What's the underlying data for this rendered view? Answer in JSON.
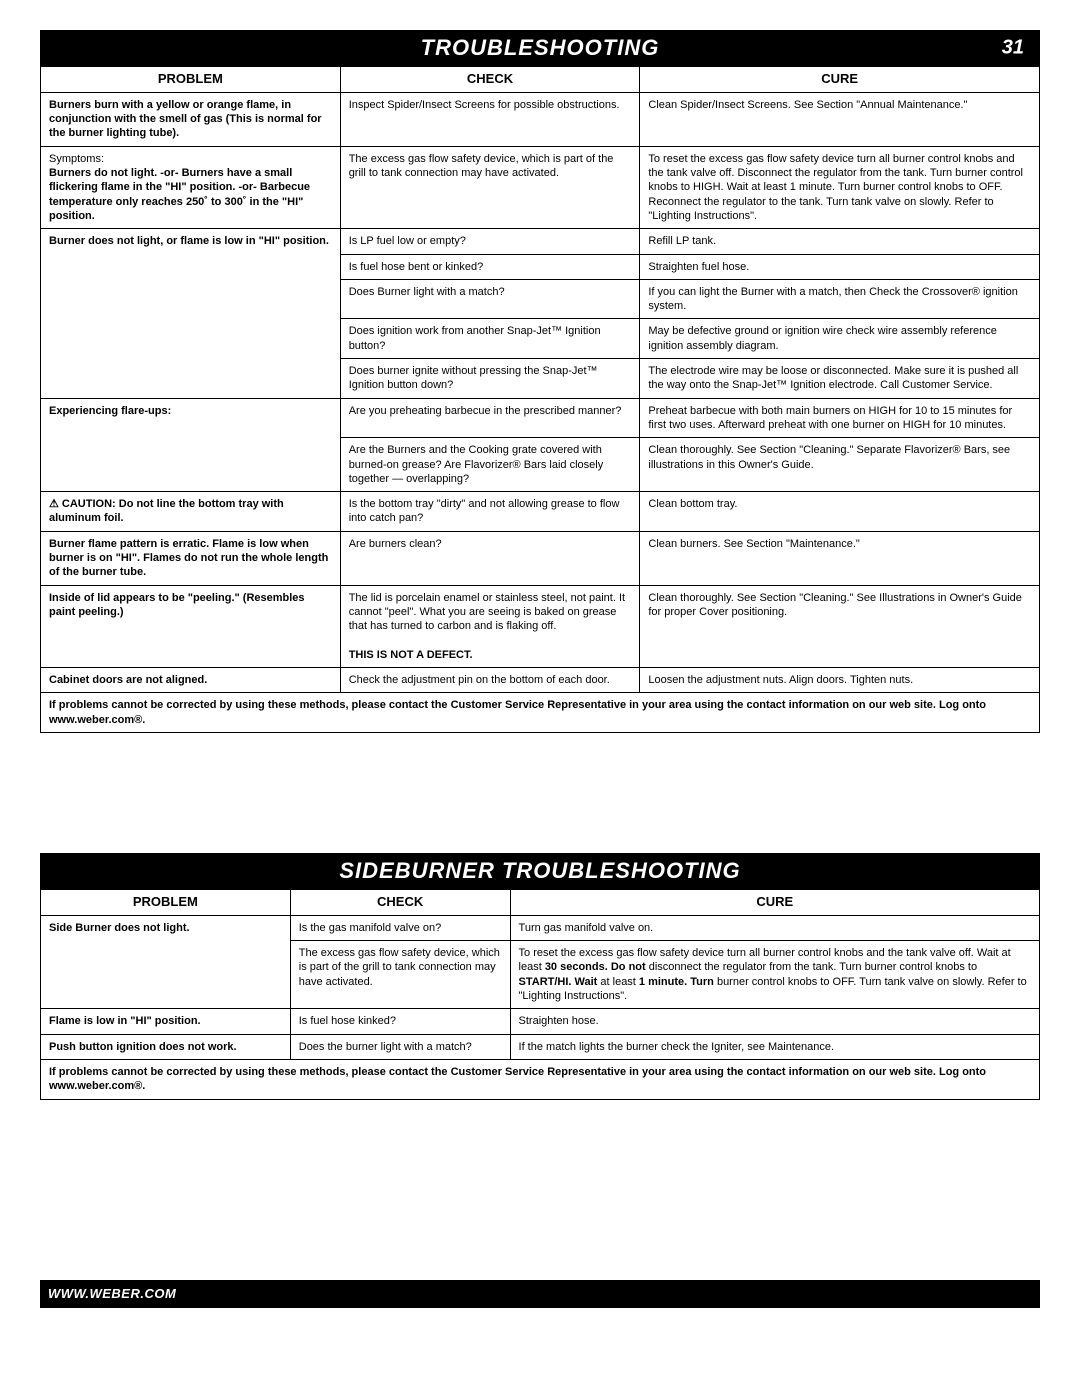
{
  "page_number": "31",
  "footer_url": "WWW.WEBER.COM",
  "colors": {
    "title_bg": "#000000",
    "title_fg": "#ffffff",
    "border": "#000000",
    "body_bg": "#ffffff",
    "text": "#000000"
  },
  "section1": {
    "title": "TROUBLESHOOTING",
    "col_widths_pct": [
      30,
      30,
      40
    ],
    "headers": [
      "PROBLEM",
      "CHECK",
      "CURE"
    ],
    "rows": [
      {
        "problem_html": "<span class='bold'>Burners burn with a yellow or orange flame, in conjunction with the smell of gas (This is normal for the burner lighting tube).</span>",
        "check": "Inspect Spider/Insect Screens for possible obstructions.",
        "cure": "Clean Spider/Insect Screens. See Section \"Annual Maintenance.\""
      },
      {
        "problem_html": "<span class='symptoms-label'>Symptoms:</span><br><span class='bold'>Burners do not light. -or- Burners have a small flickering flame in the \"HI\" position. -or- Barbecue temperature only reaches 250˚ to 300˚ in the \"HI\" position.</span>",
        "check": "The excess gas flow safety device, which is part of the grill to tank connection may have activated.",
        "cure": "To reset the excess gas flow safety device turn all burner control knobs and the tank valve off. Disconnect the regulator from the tank. Turn burner control knobs to HIGH. Wait at least 1 minute. Turn burner control knobs to OFF. Reconnect the regulator to the tank. Turn tank valve on slowly. Refer to \"Lighting Instructions\"."
      },
      {
        "problem_html": "<span class='bold'>Burner does not light, or flame is low in \"HI\" position.</span>",
        "checks_cures": [
          {
            "check": "Is LP fuel low or empty?",
            "cure": "Refill LP tank."
          },
          {
            "check": "Is fuel hose bent or kinked?",
            "cure": "Straighten fuel hose."
          },
          {
            "check": "Does Burner light with a match?",
            "cure": "If you can light the Burner with a match, then Check the Crossover® ignition system."
          },
          {
            "check": "Does ignition work from another Snap-Jet™ Ignition button?",
            "cure": "May be defective ground or ignition wire check wire assembly reference ignition assembly diagram."
          },
          {
            "check": "Does burner ignite without pressing the Snap-Jet™ Ignition button down?",
            "cure": "The electrode wire may be loose or disconnected. Make sure it is pushed all the way onto the Snap-Jet™ Ignition electrode. Call Customer Service."
          }
        ]
      },
      {
        "problem_html": "<span class='bold'>Experiencing flare-ups:</span>",
        "checks_cures": [
          {
            "check": "Are you preheating barbecue in the prescribed manner?",
            "cure": "Preheat barbecue with both main burners on HIGH for 10 to 15 minutes for first two uses. Afterward preheat with one burner on HIGH for 10 minutes."
          },
          {
            "check": "Are the Burners and the Cooking grate covered with burned-on grease? Are Flavorizer® Bars laid closely together — overlapping?",
            "cure": "Clean thoroughly. See Section \"Cleaning.\" Separate Flavorizer® Bars, see illustrations in this Owner's Guide."
          }
        ]
      },
      {
        "problem_html": "<span class='bold'>⚠ CAUTION: Do not line the bottom tray with aluminum foil.</span>",
        "check": "Is the bottom tray \"dirty\" and not allowing grease to flow into catch pan?",
        "cure": "Clean bottom tray."
      },
      {
        "problem_html": "<span class='bold'>Burner flame pattern is erratic. Flame is low when burner is on \"HI\". Flames do not run the whole length of the burner tube.</span>",
        "check": "Are burners clean?",
        "cure": "Clean burners. See Section \"Maintenance.\""
      },
      {
        "problem_html": "<span class='bold'>Inside of lid appears to be \"peeling.\" (Resembles paint peeling.)</span>",
        "check_html": "The lid is porcelain enamel or stainless steel, not paint. It cannot \"peel\". What you are seeing is baked on grease that has turned to carbon and is flaking off.<br><br><span class='bold'>THIS IS NOT A DEFECT.</span>",
        "cure": "Clean thoroughly. See Section \"Cleaning.\" See Illustrations in Owner's Guide for proper Cover positioning."
      },
      {
        "problem_html": "<span class='bold'>Cabinet doors are not aligned.</span>",
        "check": "Check the adjustment pin on the bottom of each door.",
        "cure": "Loosen the adjustment nuts. Align doors. Tighten nuts."
      }
    ],
    "footer_note": "If problems cannot be corrected by using these methods, please contact the Customer Service Representative in your area using the contact information on our web site. Log onto www.weber.com®."
  },
  "section2": {
    "title": "SIDEBURNER TROUBLESHOOTING",
    "col_widths_pct": [
      25,
      22,
      53
    ],
    "headers": [
      "PROBLEM",
      "CHECK",
      "CURE"
    ],
    "rows": [
      {
        "problem": "Side Burner does not light.",
        "checks_cures": [
          {
            "check": "Is the gas manifold valve on?",
            "cure": "Turn gas manifold valve on."
          },
          {
            "check_html": "The excess gas flow safety device, which is part of the grill to tank connection may have activated.",
            "cure_html": "To reset the excess gas flow safety device turn all burner control knobs and the tank valve off. Wait at least <span class='bold'>30 seconds. Do not</span> disconnect the regulator from the tank. Turn burner control knobs to <span class='bold'>START/HI. Wait</span> at least <span class='bold'>1 minute. Turn</span> burner control knobs to OFF. Turn tank valve on slowly. Refer to \"Lighting Instructions\"."
          }
        ]
      },
      {
        "problem": "Flame is low in \"HI\" position.",
        "check": "Is fuel hose kinked?",
        "cure": "Straighten hose."
      },
      {
        "problem": "Push button ignition does not work.",
        "check": "Does the burner light with a match?",
        "cure": "If the match lights the burner check the Igniter, see Maintenance."
      }
    ],
    "footer_note": "If problems cannot be corrected by using these methods, please contact the Customer Service Representative in your area using the contact information on our web site. Log onto www.weber.com®."
  }
}
